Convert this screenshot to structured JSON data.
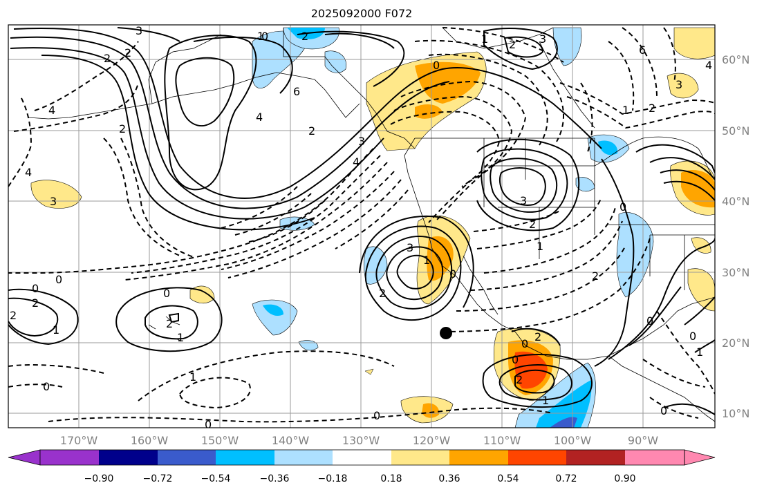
{
  "title": "2025092000 F072",
  "lon_labels": [
    "170°W",
    "160°W",
    "150°W",
    "140°W",
    "130°W",
    "120°W",
    "110°W",
    "100°W",
    "90°W"
  ],
  "lat_labels": [
    "60°N",
    "50°N",
    "40°N",
    "30°N",
    "20°N",
    "10°N"
  ],
  "colorbar": {
    "tick_labels": [
      "−0.90",
      "−0.72",
      "−0.54",
      "−0.36",
      "−0.18",
      "0.18",
      "0.36",
      "0.54",
      "0.72",
      "0.90"
    ],
    "colors": [
      "#9932CC",
      "#00008B",
      "#3A5BCC",
      "#00BFFF",
      "#ADE0FF",
      "#FFFFFF",
      "#FFE88A",
      "#FFA500",
      "#FF4500",
      "#B22222",
      "#FF88B0"
    ]
  },
  "contour_labels": {
    "l1": "1",
    "l2": "0",
    "l3": "2",
    "l4": "3",
    "l5": "2",
    "l6": "2",
    "l7": "6",
    "l8": "4",
    "l9": "2",
    "l10": "4",
    "l11": "3",
    "l12": "4",
    "l13": "2",
    "l14": "3",
    "l15": "0",
    "l16": "1",
    "l17": "0",
    "l18": "3",
    "l19": "1",
    "l20": "2",
    "l21": "0",
    "l22": "2",
    "l23": "1",
    "l24": "0",
    "l25": "2",
    "l26": "1",
    "l27": "0",
    "l28": "0",
    "l29": "0",
    "l30": "2",
    "l31": "0",
    "l32": "2",
    "l33": "1",
    "l34": "0",
    "l35": "0",
    "l36": "1",
    "l37": "0",
    "l38": "2",
    "l39": "1",
    "l40": "4",
    "l41": "3",
    "l42": "6",
    "l43": "0",
    "l44": "3",
    "l45": "2",
    "l46": "1",
    "l47": "2",
    "l48": "1",
    "l49": "0",
    "l50": "3",
    "l51": "2",
    "l52": "4",
    "l53": "0",
    "l54": "2"
  },
  "marker": "storm-center-dot"
}
